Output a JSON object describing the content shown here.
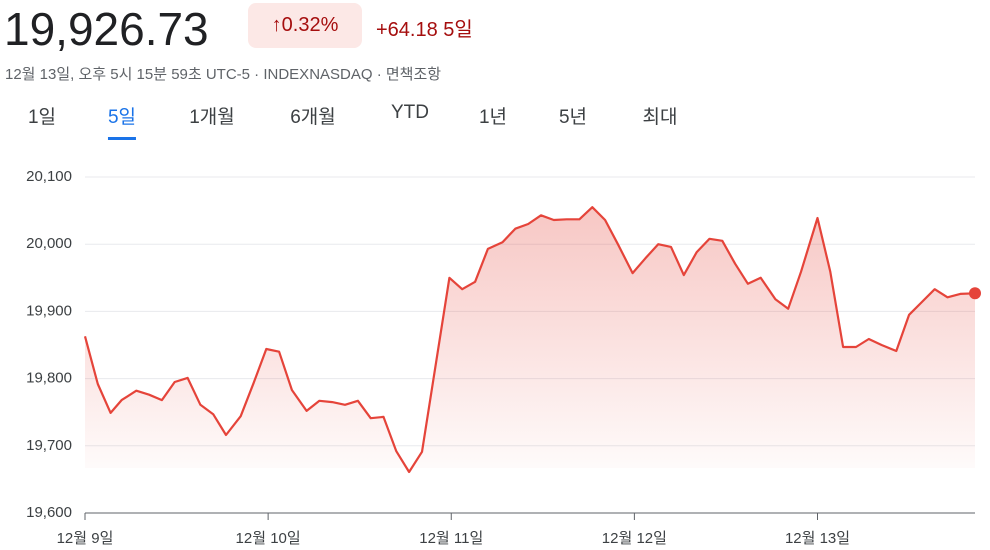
{
  "header": {
    "price": "19,926.73",
    "change_pct": "0.32%",
    "change": "+64.18",
    "period": "5일",
    "subtitle": "12월 13일, 오후 5시 15분 59초 UTC-5 · INDEXNASDAQ · 면책조항"
  },
  "tabs": {
    "items": [
      "1일",
      "5일",
      "1개월",
      "6개월",
      "YTD",
      "1년",
      "5년",
      "최대"
    ],
    "active": 1
  },
  "chart_data": {
    "type": "line",
    "color": "#e5443a",
    "grid": true,
    "area": true,
    "end_marker": true,
    "xlim": [
      0,
      4.86
    ],
    "ylim": [
      19600,
      20100
    ],
    "xticks": [
      {
        "value": 0,
        "label": "12월 9일"
      },
      {
        "value": 1,
        "label": "12월 10일"
      },
      {
        "value": 2,
        "label": "12월 11일"
      },
      {
        "value": 3,
        "label": "12월 12일"
      },
      {
        "value": 4,
        "label": "12월 13일"
      }
    ],
    "yticks": [
      {
        "value": 19600,
        "label": "19,600"
      },
      {
        "value": 19700,
        "label": "19,700"
      },
      {
        "value": 19800,
        "label": "19,800"
      },
      {
        "value": 19900,
        "label": "19,900"
      },
      {
        "value": 20000,
        "label": "20,000"
      },
      {
        "value": 20100,
        "label": "20,100"
      }
    ],
    "x": [
      0,
      0.07,
      0.14,
      0.2,
      0.28,
      0.35,
      0.42,
      0.49,
      0.56,
      0.63,
      0.7,
      0.77,
      0.85,
      0.92,
      0.99,
      1.06,
      1.13,
      1.21,
      1.28,
      1.35,
      1.42,
      1.49,
      1.56,
      1.63,
      1.7,
      1.77,
      1.84,
      1.99,
      2.06,
      2.13,
      2.2,
      2.28,
      2.35,
      2.42,
      2.49,
      2.56,
      2.63,
      2.7,
      2.77,
      2.84,
      2.91,
      2.99,
      3.06,
      3.13,
      3.2,
      3.27,
      3.34,
      3.41,
      3.48,
      3.55,
      3.62,
      3.69,
      3.77,
      3.84,
      3.91,
      4.0,
      4.07,
      4.14,
      4.21,
      4.28,
      4.35,
      4.43,
      4.5,
      4.57,
      4.64,
      4.71,
      4.78,
      4.86
    ],
    "values": [
      19863,
      19792,
      19749,
      19768,
      19782,
      19776,
      19768,
      19795,
      19801,
      19761,
      19747,
      19716,
      19744,
      19793,
      19844,
      19840,
      19783,
      19752,
      19767,
      19765,
      19761,
      19767,
      19741,
      19743,
      19692,
      19661,
      19691,
      19950,
      19933,
      19944,
      19993,
      20003,
      20023,
      20030,
      20043,
      20036,
      20037,
      20037,
      20055,
      20036,
      20000,
      19957,
      19979,
      20000,
      19996,
      19954,
      19988,
      20008,
      20005,
      19971,
      19941,
      19950,
      19918,
      19904,
      19959,
      20039,
      19959,
      19847,
      19847,
      19859,
      19850,
      19841,
      19895,
      19914,
      19933,
      19921,
      19926,
      19927
    ]
  }
}
